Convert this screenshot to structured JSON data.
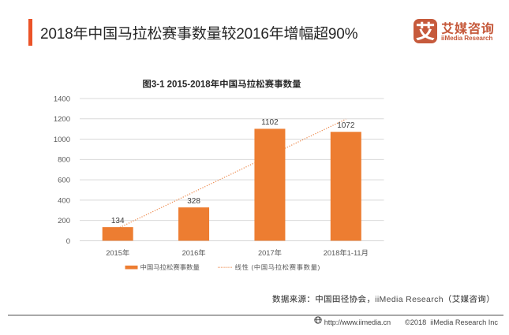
{
  "page": {
    "background": "#ffffff"
  },
  "header": {
    "title": "2018年中国马拉松赛事数量较2016年增幅超90%",
    "accent_color": "#eb5328",
    "logo": {
      "icon_char": "艾",
      "name_cn": "艾媒咨询",
      "name_en": "iiMedia Research",
      "brand_color": "#c65a3c"
    }
  },
  "chart_data": {
    "type": "bar",
    "title": "图3-1 2015-2018年中国马拉松赛事数量",
    "categories": [
      "2015年",
      "2016年",
      "2017年",
      "2018年1-11月"
    ],
    "values": [
      134,
      328,
      1102,
      1072
    ],
    "ylim": [
      0,
      1400
    ],
    "ytick_step": 200,
    "grid": true,
    "legend": [
      {
        "kind": "bar",
        "label": "中国马拉松赛事数量"
      },
      {
        "kind": "trendline",
        "label": "线性 (中国马拉松赛事数量)"
      }
    ],
    "legend_position": "bottom",
    "trendline": {
      "kind": "linear"
    },
    "colors": {
      "bar": "#ed7d31",
      "trendline": "#ed8c50",
      "grid": "#d9d9d9",
      "axis_line": "#d2d2d2",
      "tick_text": "#595959",
      "value_label": "#404040",
      "title_text": "#262626"
    }
  },
  "source_note": "数据来源：中国田径协会，iiMedia Research（艾媒咨询）",
  "footer": {
    "url": "http://www.iimedia.cn",
    "copyright": "©2018",
    "company": "iiMedia Research Inc"
  }
}
